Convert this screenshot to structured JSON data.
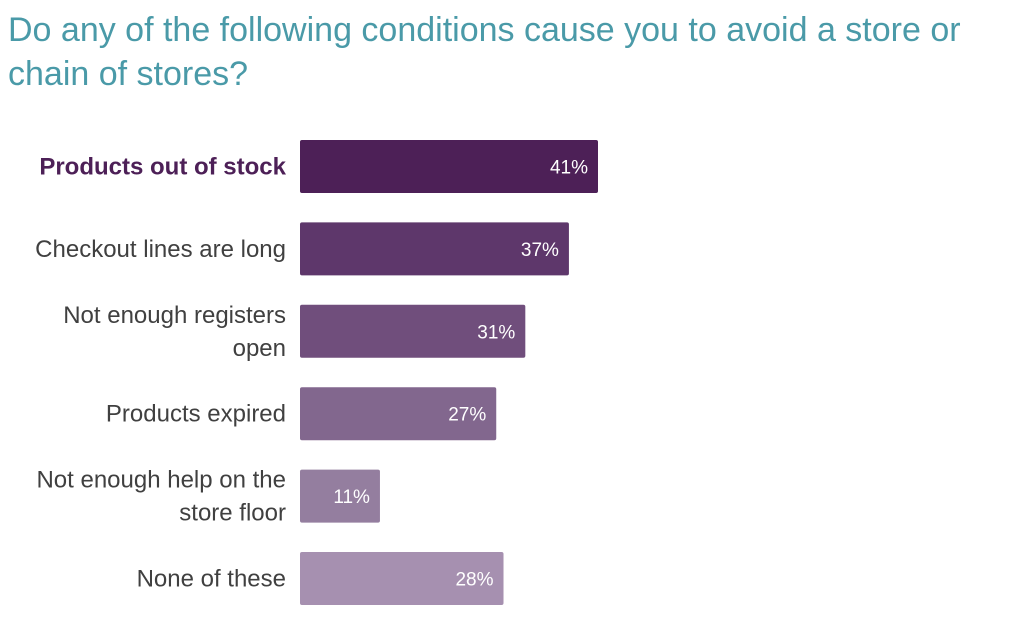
{
  "chart_data": {
    "type": "bar",
    "orientation": "horizontal",
    "title": "Do any of the following conditions cause you to avoid a store or chain of stores?",
    "categories": [
      "Products out of stock",
      "Checkout lines are long",
      "Not enough registers open",
      "Products expired",
      "Not enough help on the store floor",
      "None of these"
    ],
    "category_lines": [
      [
        "Products out of stock"
      ],
      [
        "Checkout lines are long"
      ],
      [
        "Not enough registers",
        "open"
      ],
      [
        "Products expired"
      ],
      [
        "Not enough help on the",
        "store floor"
      ],
      [
        "None of these"
      ]
    ],
    "values": [
      41,
      37,
      31,
      27,
      11,
      28
    ],
    "value_labels": [
      "41%",
      "37%",
      "31%",
      "27%",
      "11%",
      "28%"
    ],
    "highlighted_category": "Products out of stock",
    "bar_colors": [
      "#4d2057",
      "#5e376b",
      "#704e7c",
      "#82678e",
      "#947e9f",
      "#a690b0"
    ],
    "xlim": [
      0,
      100
    ],
    "grid": false,
    "legend": "none"
  }
}
